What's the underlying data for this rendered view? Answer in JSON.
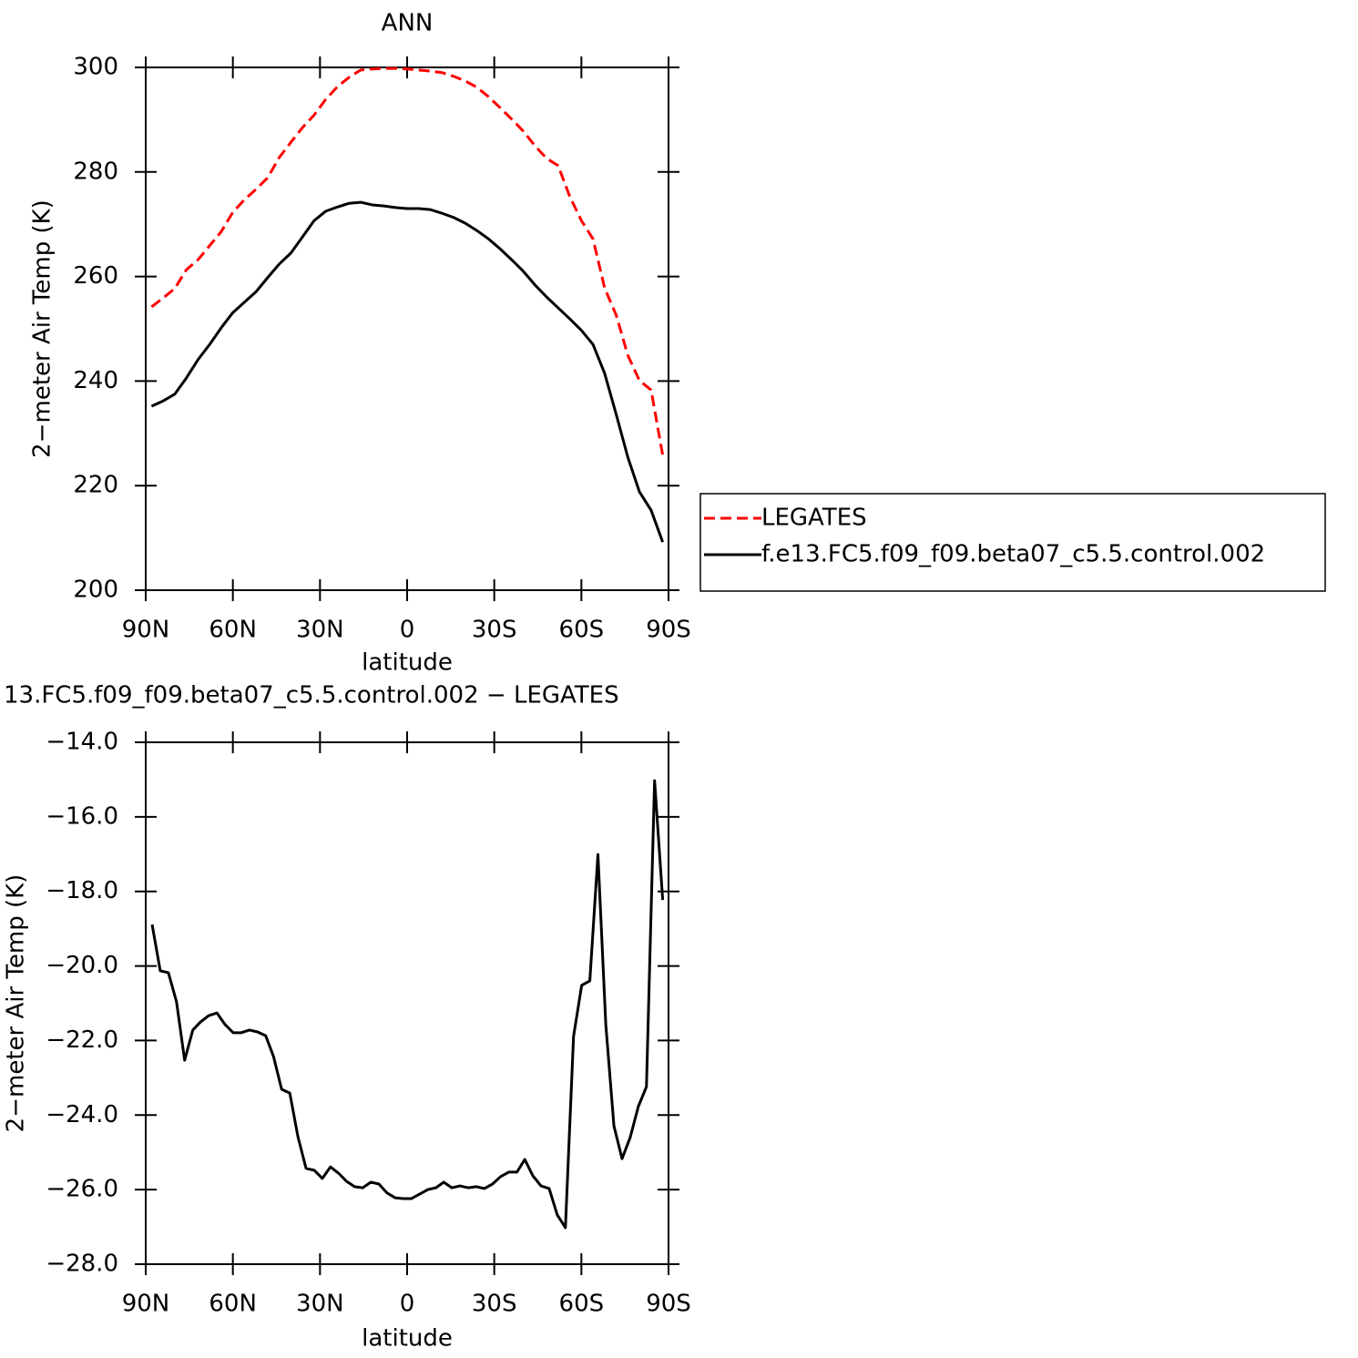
{
  "chart_data": [
    {
      "type": "line",
      "title": "ANN",
      "x_label": "latitude",
      "y_label": "2−meter Air Temp (K)",
      "x": [
        88,
        84,
        80,
        76,
        72,
        68,
        64,
        60,
        56,
        52,
        48,
        44,
        40,
        36,
        32,
        28,
        24,
        20,
        16,
        12,
        8,
        4,
        0,
        -4,
        -8,
        -12,
        -16,
        -20,
        -24,
        -28,
        -32,
        -36,
        -40,
        -44,
        -48,
        -52,
        -56,
        -60,
        -64,
        -68,
        -72,
        -76,
        -80,
        -84,
        -88
      ],
      "xlim": [
        90,
        -90
      ],
      "xticks": [
        {
          "value": 90,
          "label": "90N"
        },
        {
          "value": 60,
          "label": "60N"
        },
        {
          "value": 30,
          "label": "30N"
        },
        0,
        {
          "value": -30,
          "label": "30S"
        },
        {
          "value": -60,
          "label": "60S"
        },
        {
          "value": -90,
          "label": "90S"
        }
      ],
      "ylim": [
        200,
        300
      ],
      "yticks": [
        200,
        220,
        240,
        260,
        280,
        300
      ],
      "legend_position": "outside-right",
      "series": [
        {
          "name": "LEGATES",
          "color": "#ff0000",
          "line_style": "dashed",
          "values": [
            254.2,
            255.9,
            257.7,
            261.3,
            263.2,
            265.9,
            268.6,
            272.3,
            274.7,
            276.7,
            278.9,
            282.8,
            285.7,
            288.5,
            290.9,
            293.9,
            296.3,
            298.1,
            299.5,
            299.7,
            299.8,
            299.8,
            299.7,
            299.5,
            299.3,
            299.0,
            298.3,
            297.4,
            296.2,
            294.4,
            292.3,
            290.1,
            287.8,
            285.0,
            282.6,
            281.2,
            275.3,
            270.7,
            267.2,
            257.8,
            252.6,
            244.9,
            240.1,
            238.3,
            225.8
          ]
        },
        {
          "name": "f.e13.FC5.f09_f09.beta07_c5.5.control.002",
          "color": "#000000",
          "line_style": "solid",
          "values": [
            235.2,
            236.2,
            237.5,
            240.6,
            244.1,
            247.0,
            250.2,
            253.1,
            255.1,
            257.1,
            259.8,
            262.4,
            264.5,
            267.6,
            270.7,
            272.5,
            273.3,
            274.0,
            274.2,
            273.7,
            273.5,
            273.2,
            273.0,
            273.0,
            272.8,
            272.1,
            271.3,
            270.2,
            268.8,
            267.2,
            265.3,
            263.2,
            261.0,
            258.4,
            256.1,
            254.0,
            251.9,
            249.7,
            247.0,
            241.5,
            233.6,
            225.4,
            218.8,
            215.3,
            209.2
          ]
        }
      ]
    },
    {
      "type": "line",
      "title": "13.FC5.f09_f09.beta07_c5.5.control.002 − LEGATES",
      "x_label": "latitude",
      "y_label": "2−meter Air Temp (K)",
      "x": [
        87.8,
        85.0,
        82.2,
        79.4,
        76.6,
        73.8,
        71.1,
        68.3,
        65.5,
        62.7,
        59.9,
        57.1,
        54.3,
        51.5,
        48.7,
        46.0,
        43.2,
        40.4,
        37.6,
        34.8,
        32.0,
        29.2,
        26.4,
        23.6,
        20.8,
        18.1,
        15.3,
        12.5,
        9.7,
        6.9,
        4.1,
        1.3,
        -1.5,
        -4.3,
        -7.1,
        -9.9,
        -12.6,
        -15.4,
        -18.2,
        -21.0,
        -23.8,
        -26.6,
        -29.4,
        -32.2,
        -35.0,
        -37.8,
        -40.5,
        -43.3,
        -46.1,
        -48.9,
        -51.7,
        -54.5,
        -57.3,
        -60.1,
        -62.9,
        -65.7,
        -68.4,
        -71.2,
        -74.0,
        -76.8,
        -79.6,
        -82.4,
        -85.2,
        -88.0
      ],
      "xlim": [
        90,
        -90
      ],
      "xticks": [
        {
          "value": 90,
          "label": "90N"
        },
        {
          "value": 60,
          "label": "60N"
        },
        {
          "value": 30,
          "label": "30N"
        },
        0,
        {
          "value": -30,
          "label": "30S"
        },
        {
          "value": -60,
          "label": "60S"
        },
        {
          "value": -90,
          "label": "90S"
        }
      ],
      "ylim": [
        -28,
        -14
      ],
      "yticks": [
        {
          "value": -28,
          "label": "−28.0"
        },
        {
          "value": -26,
          "label": "−26.0"
        },
        {
          "value": -24,
          "label": "−24.0"
        },
        {
          "value": -22,
          "label": "−22.0"
        },
        {
          "value": -20,
          "label": "−20.0"
        },
        {
          "value": -18,
          "label": "−18.0"
        },
        {
          "value": -16,
          "label": "−16.0"
        },
        {
          "value": -14,
          "label": "−14.0"
        }
      ],
      "color": "#000000",
      "values": [
        -18.89,
        -20.13,
        -20.18,
        -20.96,
        -22.53,
        -21.72,
        -21.5,
        -21.33,
        -21.26,
        -21.57,
        -21.79,
        -21.79,
        -21.72,
        -21.77,
        -21.87,
        -22.43,
        -23.31,
        -23.41,
        -24.58,
        -25.43,
        -25.48,
        -25.7,
        -25.39,
        -25.56,
        -25.78,
        -25.92,
        -25.95,
        -25.8,
        -25.85,
        -26.09,
        -26.22,
        -26.24,
        -26.24,
        -26.12,
        -26.0,
        -25.95,
        -25.8,
        -25.95,
        -25.9,
        -25.95,
        -25.92,
        -25.97,
        -25.85,
        -25.65,
        -25.53,
        -25.53,
        -25.19,
        -25.63,
        -25.9,
        -25.97,
        -26.68,
        -27.02,
        -21.89,
        -20.52,
        -20.4,
        -17.01,
        -21.57,
        -24.29,
        -25.17,
        -24.6,
        -23.77,
        -23.24,
        -15.03,
        -18.23
      ]
    }
  ]
}
